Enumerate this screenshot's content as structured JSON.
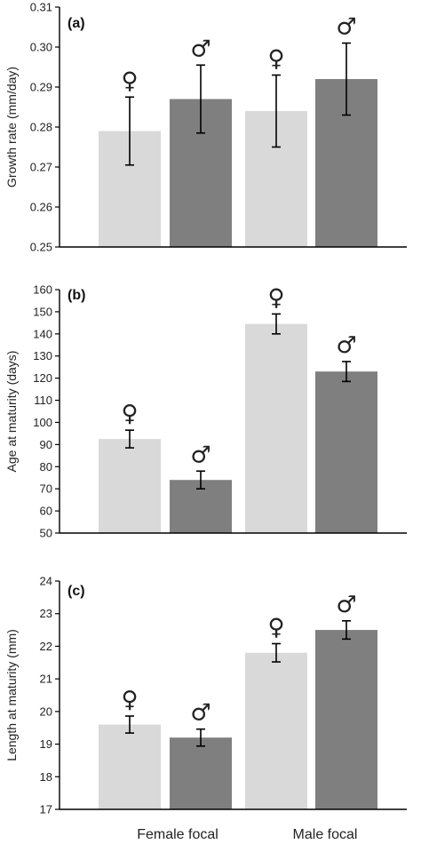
{
  "colors": {
    "female_bar": "#d9d9d9",
    "male_bar": "#7f7f7f",
    "axis": "#000000",
    "error": "#000000"
  },
  "category_labels": [
    "Female focal",
    "Male focal"
  ],
  "symbols": {
    "female": "♀",
    "male": "♂"
  },
  "chart_data": [
    {
      "type": "bar",
      "panel": "(a)",
      "ylabel": "Growth rate (mm/day)",
      "ylim": [
        0.25,
        0.31
      ],
      "yticks": [
        "0.25",
        "0.26",
        "0.27",
        "0.28",
        "0.29",
        "0.30",
        "0.31"
      ],
      "ytick_values": [
        0.25,
        0.26,
        0.27,
        0.28,
        0.29,
        0.3,
        0.31
      ],
      "categories": [
        "Female focal",
        "Male focal"
      ],
      "bars": [
        {
          "group": "Female focal",
          "sex": "female",
          "symbol": "♀",
          "value": 0.279,
          "err": 0.0085
        },
        {
          "group": "Female focal",
          "sex": "male",
          "symbol": "♂",
          "value": 0.287,
          "err": 0.0085
        },
        {
          "group": "Male focal",
          "sex": "female",
          "symbol": "♀",
          "value": 0.284,
          "err": 0.009
        },
        {
          "group": "Male focal",
          "sex": "male",
          "symbol": "♂",
          "value": 0.292,
          "err": 0.009
        }
      ],
      "grid": false
    },
    {
      "type": "bar",
      "panel": "(b)",
      "ylabel": "Age at maturity (days)",
      "ylim": [
        50,
        160
      ],
      "yticks": [
        "50",
        "60",
        "70",
        "80",
        "90",
        "100",
        "110",
        "120",
        "130",
        "140",
        "150",
        "160"
      ],
      "ytick_values": [
        50,
        60,
        70,
        80,
        90,
        100,
        110,
        120,
        130,
        140,
        150,
        160
      ],
      "categories": [
        "Female focal",
        "Male focal"
      ],
      "bars": [
        {
          "group": "Female focal",
          "sex": "female",
          "symbol": "♀",
          "value": 92.5,
          "err": 4
        },
        {
          "group": "Female focal",
          "sex": "male",
          "symbol": "♂",
          "value": 74,
          "err": 4
        },
        {
          "group": "Male focal",
          "sex": "female",
          "symbol": "♀",
          "value": 144.5,
          "err": 4.5
        },
        {
          "group": "Male focal",
          "sex": "male",
          "symbol": "♂",
          "value": 123,
          "err": 4.5
        }
      ],
      "grid": false
    },
    {
      "type": "bar",
      "panel": "(c)",
      "ylabel": "Length at maturity (mm)",
      "ylim": [
        17,
        24
      ],
      "yticks": [
        "17",
        "18",
        "19",
        "20",
        "21",
        "22",
        "23",
        "24"
      ],
      "ytick_values": [
        17,
        18,
        19,
        20,
        21,
        22,
        23,
        24
      ],
      "categories": [
        "Female focal",
        "Male focal"
      ],
      "bars": [
        {
          "group": "Female focal",
          "sex": "female",
          "symbol": "♀",
          "value": 19.6,
          "err": 0.26
        },
        {
          "group": "Female focal",
          "sex": "male",
          "symbol": "♂",
          "value": 19.2,
          "err": 0.26
        },
        {
          "group": "Male focal",
          "sex": "female",
          "symbol": "♀",
          "value": 21.8,
          "err": 0.28
        },
        {
          "group": "Male focal",
          "sex": "male",
          "symbol": "♂",
          "value": 22.5,
          "err": 0.28
        }
      ],
      "grid": false
    }
  ]
}
